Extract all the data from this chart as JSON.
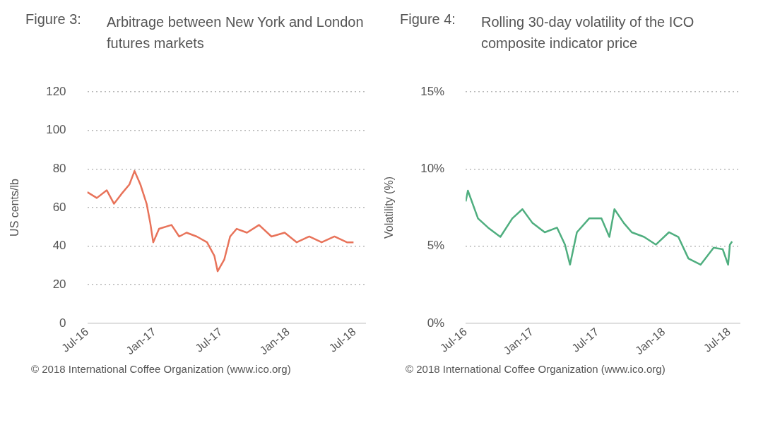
{
  "chart_data": [
    {
      "type": "line",
      "title": "Figure 3:",
      "subtitle": "Arbitrage between New York and London futures markets",
      "ylabel": "US cents/lb",
      "annotations": [
        "© 2018 International Coffee Organization (www.ico.org)"
      ],
      "xlim": [
        "2016-07-01",
        "2018-08-01"
      ],
      "ylim": [
        0,
        120
      ],
      "yticks": [
        0,
        20,
        40,
        60,
        80,
        100,
        120
      ],
      "xticks": [
        {
          "value": "2016-07-01",
          "label": "Jul-16"
        },
        {
          "value": "2017-01-01",
          "label": "Jan-17"
        },
        {
          "value": "2017-07-01",
          "label": "Jul-17"
        },
        {
          "value": "2018-01-01",
          "label": "Jan-18"
        },
        {
          "value": "2018-07-01",
          "label": "Jul-18"
        }
      ],
      "grid": "y",
      "series": [
        {
          "color": "#e8735a",
          "x": [
            "2016-07-01",
            "2016-07-27",
            "2016-08-23",
            "2016-09-12",
            "2016-10-02",
            "2016-10-24",
            "2016-11-07",
            "2016-11-23",
            "2016-12-10",
            "2016-12-20",
            "2016-12-28",
            "2017-01-13",
            "2017-02-16",
            "2017-03-09",
            "2017-03-29",
            "2017-04-26",
            "2017-05-24",
            "2017-06-13",
            "2017-06-22",
            "2017-07-10",
            "2017-07-26",
            "2017-08-13",
            "2017-09-10",
            "2017-10-13",
            "2017-11-16",
            "2017-12-22",
            "2018-01-24",
            "2018-02-27",
            "2018-04-02",
            "2018-05-07",
            "2018-06-10",
            "2018-06-28"
          ],
          "values": [
            68,
            65,
            69,
            62,
            67,
            72,
            79,
            72,
            62,
            52,
            42,
            49,
            51,
            45,
            47,
            45,
            42,
            35,
            27,
            33,
            45,
            49,
            47,
            51,
            45,
            47,
            42,
            45,
            42,
            45,
            42,
            42
          ]
        }
      ]
    },
    {
      "type": "line",
      "title": "Figure 4:",
      "subtitle": "Rolling 30-day volatility of the ICO composite indicator price",
      "ylabel": "Volatility (%)",
      "annotations": [
        "© 2018 International Coffee Organization (www.ico.org)"
      ],
      "xlim": [
        "2016-07-01",
        "2018-08-01"
      ],
      "ylim": [
        0,
        15
      ],
      "yticks": [
        {
          "value": 0,
          "label": "0%"
        },
        {
          "value": 5,
          "label": "5%"
        },
        {
          "value": 10,
          "label": "10%"
        },
        {
          "value": 15,
          "label": "15%"
        }
      ],
      "xticks": [
        {
          "value": "2016-07-01",
          "label": "Jul-16"
        },
        {
          "value": "2017-01-01",
          "label": "Jan-17"
        },
        {
          "value": "2017-07-01",
          "label": "Jul-17"
        },
        {
          "value": "2018-01-01",
          "label": "Jan-18"
        },
        {
          "value": "2018-07-01",
          "label": "Jul-18"
        }
      ],
      "grid": "y",
      "series": [
        {
          "color": "#4fae7f",
          "x": [
            "2016-07-01",
            "2016-07-07",
            "2016-08-04",
            "2016-09-01",
            "2016-10-05",
            "2016-11-07",
            "2016-12-05",
            "2017-01-02",
            "2017-02-05",
            "2017-03-11",
            "2017-04-02",
            "2017-04-16",
            "2017-05-05",
            "2017-06-08",
            "2017-07-12",
            "2017-08-03",
            "2017-08-17",
            "2017-09-12",
            "2017-10-04",
            "2017-11-07",
            "2017-12-10",
            "2018-01-15",
            "2018-02-10",
            "2018-03-10",
            "2018-04-13",
            "2018-05-19",
            "2018-06-13",
            "2018-06-28",
            "2018-07-03",
            "2018-07-09"
          ],
          "values": [
            7.9,
            8.6,
            6.8,
            6.2,
            5.6,
            6.8,
            7.4,
            6.5,
            5.9,
            6.2,
            5.1,
            3.8,
            5.9,
            6.8,
            6.8,
            5.6,
            7.4,
            6.5,
            5.9,
            5.6,
            5.1,
            5.9,
            5.6,
            4.2,
            3.8,
            4.9,
            4.8,
            3.8,
            5.1,
            5.3
          ]
        }
      ]
    }
  ]
}
